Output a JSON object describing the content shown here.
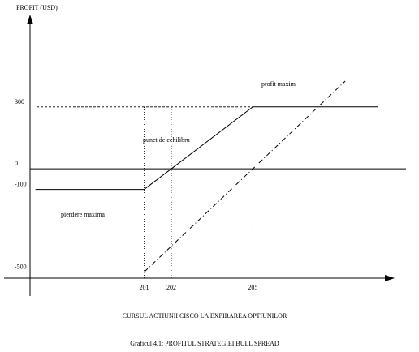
{
  "chart_data": {
    "type": "line",
    "y_label": "PROFIT (USD)",
    "x_label": "CURSUL ACTIUNII CISCO LA EXPIRAREA OPTIUNILOR",
    "caption": "Graficul 4.1: PROFITUL STRATEGIEI BULL SPREAD",
    "annotations": [
      "profit maxim",
      "punct de echilibru",
      "pierdere maximă"
    ],
    "xlim": [
      196.8,
      209.8
    ],
    "xticks": [
      201,
      202,
      205
    ],
    "ylim": [
      -530,
      700
    ],
    "yticks": [
      300,
      0,
      -100,
      -500
    ],
    "series": [
      {
        "color": "#000000",
        "dash": "solid",
        "x": [
          197,
          201,
          205,
          209.6
        ],
        "values": [
          -100,
          -100,
          300,
          300
        ]
      },
      {
        "color": "#000000",
        "dash": "dashdot",
        "x": [
          201,
          208.4
        ],
        "values": [
          -500,
          425
        ]
      }
    ]
  }
}
